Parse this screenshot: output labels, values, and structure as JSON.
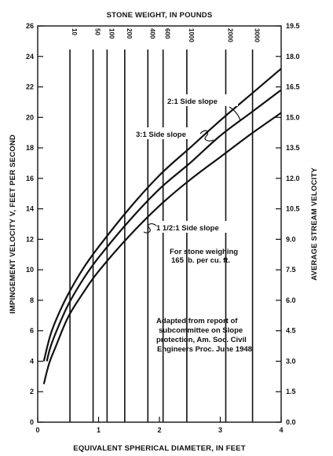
{
  "chart_data": {
    "type": "line",
    "x_axis": {
      "label": "EQUIVALENT SPHERICAL DIAMETER, IN FEET",
      "min": 0,
      "max": 4,
      "ticks": [
        "0",
        "1",
        "2",
        "3",
        "4"
      ]
    },
    "y_axis_left": {
      "label": "IMPINGEMENT VELOCITY V, FEET PER SECOND",
      "min": 0,
      "max": 26,
      "ticks": [
        "0",
        "2",
        "4",
        "6",
        "8",
        "10",
        "12",
        "14",
        "16",
        "18",
        "20",
        "22",
        "24",
        "26"
      ]
    },
    "y_axis_right": {
      "label": "AVERAGE STREAM VELOCITY",
      "min": 0.0,
      "max": 19.5,
      "ticks": [
        "0.0",
        "1.5",
        "3.0",
        "4.5",
        "6.0",
        "7.5",
        "9.0",
        "10.5",
        "12.0",
        "13.5",
        "15.0",
        "16.5",
        "18.0",
        "19.5"
      ]
    },
    "x_axis_top": {
      "label": "STONE WEIGHT, IN POUNDS",
      "ticks": [
        {
          "label": "10",
          "x": 0.53
        },
        {
          "label": "50",
          "x": 0.91
        },
        {
          "label": "100",
          "x": 1.14
        },
        {
          "label": "200",
          "x": 1.43
        },
        {
          "label": "400",
          "x": 1.81
        },
        {
          "label": "600",
          "x": 2.06
        },
        {
          "label": "1000",
          "x": 2.45
        },
        {
          "label": "2000",
          "x": 3.09
        },
        {
          "label": "3000",
          "x": 3.53
        }
      ]
    },
    "series": [
      {
        "name": "2:1 Side slope",
        "x": [
          0.1,
          0.2,
          0.3,
          0.5,
          0.75,
          1.0,
          1.5,
          2.0,
          2.5,
          3.0,
          3.5,
          4.0
        ],
        "y": [
          4.0,
          5.6,
          6.7,
          8.4,
          10.1,
          11.5,
          14.0,
          16.2,
          18.0,
          19.8,
          21.5,
          23.2
        ]
      },
      {
        "name": "3:1 Side slope",
        "x": [
          0.15,
          0.2,
          0.3,
          0.5,
          0.75,
          1.0,
          1.5,
          2.0,
          2.5,
          3.0,
          3.5,
          4.0
        ],
        "y": [
          4.0,
          4.8,
          5.9,
          7.7,
          9.4,
          10.8,
          13.2,
          15.3,
          17.0,
          18.8,
          20.3,
          21.8
        ]
      },
      {
        "name": "1 1/2:1 Side slope",
        "x": [
          0.1,
          0.15,
          0.2,
          0.3,
          0.5,
          0.75,
          1.0,
          1.5,
          2.0,
          2.5,
          3.0,
          3.5,
          4.0
        ],
        "y": [
          2.5,
          3.3,
          4.0,
          5.0,
          6.9,
          8.5,
          9.9,
          12.2,
          14.2,
          15.9,
          17.4,
          18.9,
          20.3
        ]
      }
    ],
    "annotations": {
      "slope_2_1": "2:1 Side slope",
      "slope_3_1": "3:1 Side slope",
      "slope_15_1": "1 1/2:1 Side slope",
      "stone_note_1": "For stone weighing",
      "stone_note_2": "165 lb. per cu. ft.",
      "source_1": "Adapted from report of",
      "source_2": "subcommittee on Slope",
      "source_3": "protection, Am. Soc. Civil",
      "source_4": "Engineers Proc. June 1948"
    },
    "grid": "vertical lines at stone-weight marks only",
    "legend": "none (curves labeled inline)"
  }
}
